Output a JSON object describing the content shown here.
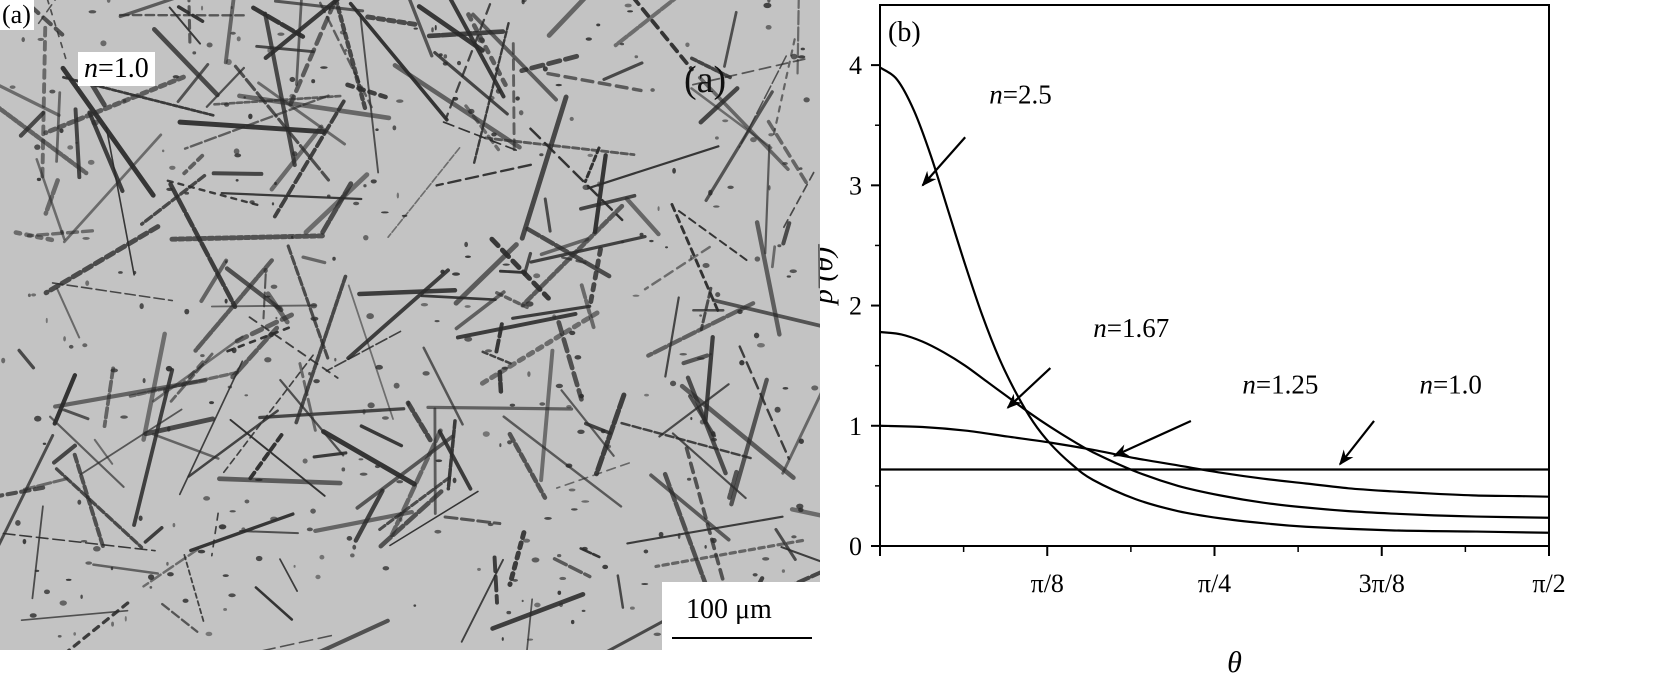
{
  "panel_a": {
    "corner_label": "(a)",
    "overlay_label": "n=1.0",
    "overlay_label_var": "n",
    "overlay_label_val": "=1.0",
    "center_label": "(a)",
    "scalebar_label": "100 μm"
  },
  "colors": {
    "micrograph_background": "#c3c3c3",
    "needle": "#2b2b2b",
    "curve": "#000000"
  },
  "chart_data": {
    "type": "line",
    "panel_label": "(b)",
    "xlabel": "θ",
    "ylabel": "p (θ)",
    "xlim": [
      0,
      1.5708
    ],
    "ylim": [
      0,
      4.5
    ],
    "x_ticks": [
      {
        "value": 0.3927,
        "label": "π/8"
      },
      {
        "value": 0.7854,
        "label": "π/4"
      },
      {
        "value": 1.1781,
        "label": "3π/8"
      },
      {
        "value": 1.5708,
        "label": "π/2"
      }
    ],
    "y_ticks": [
      {
        "value": 0,
        "label": "0"
      },
      {
        "value": 1,
        "label": "1"
      },
      {
        "value": 2,
        "label": "2"
      },
      {
        "value": 3,
        "label": "3"
      },
      {
        "value": 4,
        "label": "4"
      }
    ],
    "series": [
      {
        "name": "n=2.5",
        "var": "n",
        "val": "=2.5",
        "x": [
          0,
          0.04,
          0.08,
          0.12,
          0.16,
          0.2,
          0.24,
          0.28,
          0.32,
          0.36,
          0.4,
          0.45,
          0.5,
          0.6,
          0.7,
          0.8,
          0.9,
          1.0,
          1.2,
          1.4,
          1.5708
        ],
        "y": [
          3.98,
          3.88,
          3.62,
          3.24,
          2.79,
          2.34,
          1.92,
          1.56,
          1.27,
          1.03,
          0.85,
          0.68,
          0.55,
          0.39,
          0.29,
          0.23,
          0.19,
          0.16,
          0.13,
          0.12,
          0.11
        ],
        "label_at": [
          0.33,
          3.68
        ],
        "arrow_from": [
          0.2,
          3.4
        ],
        "arrow_to": [
          0.1,
          3.0
        ]
      },
      {
        "name": "n=1.67",
        "var": "n",
        "val": "=1.67",
        "x": [
          0,
          0.05,
          0.1,
          0.15,
          0.2,
          0.25,
          0.3,
          0.35,
          0.4,
          0.45,
          0.5,
          0.6,
          0.7,
          0.8,
          0.9,
          1.0,
          1.1,
          1.2,
          1.3,
          1.4,
          1.5708
        ],
        "y": [
          1.78,
          1.76,
          1.7,
          1.61,
          1.5,
          1.37,
          1.24,
          1.11,
          0.99,
          0.88,
          0.78,
          0.62,
          0.5,
          0.42,
          0.36,
          0.32,
          0.29,
          0.27,
          0.255,
          0.245,
          0.235
        ],
        "label_at": [
          0.59,
          1.74
        ],
        "arrow_from": [
          0.4,
          1.48
        ],
        "arrow_to": [
          0.3,
          1.15
        ]
      },
      {
        "name": "n=1.25",
        "var": "n",
        "val": "=1.25",
        "x": [
          0,
          0.1,
          0.2,
          0.3,
          0.4,
          0.5,
          0.6,
          0.7,
          0.8,
          0.9,
          1.0,
          1.1,
          1.2,
          1.3,
          1.4,
          1.5,
          1.5708
        ],
        "y": [
          1.0,
          0.99,
          0.96,
          0.91,
          0.86,
          0.8,
          0.73,
          0.67,
          0.61,
          0.56,
          0.52,
          0.48,
          0.455,
          0.435,
          0.42,
          0.415,
          0.41
        ],
        "label_at": [
          0.94,
          1.27
        ],
        "arrow_from": [
          0.73,
          1.04
        ],
        "arrow_to": [
          0.55,
          0.75
        ]
      },
      {
        "name": "n=1.0",
        "var": "n",
        "val": "=1.0",
        "x": [
          0,
          1.5708
        ],
        "y": [
          0.6366,
          0.6366
        ],
        "label_at": [
          1.34,
          1.27
        ],
        "arrow_from": [
          1.16,
          1.04
        ],
        "arrow_to": [
          1.08,
          0.68
        ]
      }
    ]
  }
}
